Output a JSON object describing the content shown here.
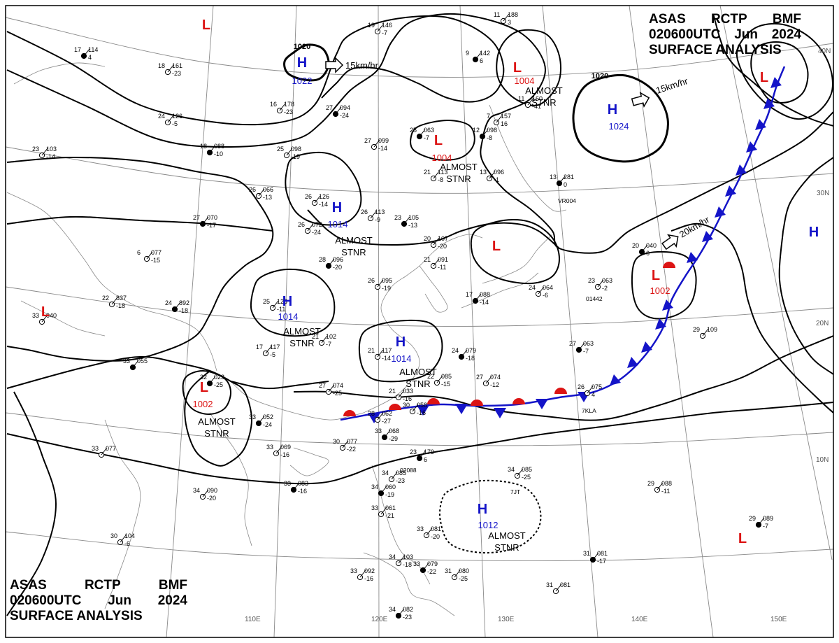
{
  "header": {
    "agency": "ASAS",
    "station": "RCTP",
    "office": "BMF",
    "time": "020600UTC",
    "month": "Jun",
    "year": "2024",
    "title": "SURFACE ANALYSIS"
  },
  "colors": {
    "high": "#1414c8",
    "low": "#dc1414",
    "cold_front": "#1414c8",
    "warm_front": "#dc1414",
    "isobar": "#000000",
    "grid": "#8a8a8a",
    "coast": "#8a8a8a"
  },
  "lon_labels": [
    "110E",
    "120E",
    "130E",
    "140E",
    "150E"
  ],
  "lat_labels": [
    "40N",
    "30N",
    "20N",
    "10N"
  ],
  "isobar_labels": [
    "1020",
    "1020"
  ],
  "pressure_systems": [
    {
      "type": "H",
      "value": "1022"
    },
    {
      "type": "L",
      "value": "1004",
      "note": [
        "ALMOST",
        "STNR"
      ]
    },
    {
      "type": "H",
      "value": "1024"
    },
    {
      "type": "L",
      "value": "1004",
      "note": [
        "ALMOST",
        "STNR"
      ]
    },
    {
      "type": "H",
      "value": "1014",
      "note": [
        "ALMOST",
        "STNR"
      ]
    },
    {
      "type": "H",
      "value": "1014",
      "note": [
        "ALMOST",
        "STNR"
      ]
    },
    {
      "type": "H",
      "value": "1014",
      "note": [
        "ALMOST",
        "STNR"
      ]
    },
    {
      "type": "L",
      "value": "1002",
      "note": [
        "ALMOST",
        "STNR"
      ]
    },
    {
      "type": "L",
      "value": "1002"
    },
    {
      "type": "H",
      "value": "1012",
      "note": [
        "ALMOST",
        "STNR"
      ]
    },
    {
      "type": "L",
      "value": ""
    },
    {
      "type": "L",
      "value": ""
    },
    {
      "type": "L",
      "value": ""
    },
    {
      "type": "L",
      "value": ""
    },
    {
      "type": "L",
      "value": ""
    },
    {
      "type": "H",
      "value": ""
    }
  ],
  "motion_vectors": [
    "15km/hr",
    "15km/hr",
    "20km/hr"
  ],
  "stations": [
    {
      "t": "17",
      "p": "114",
      "d": "4"
    },
    {
      "t": "18",
      "p": "161",
      "d": "-23"
    },
    {
      "t": "16",
      "p": "178",
      "d": "-23"
    },
    {
      "t": "27",
      "p": "094",
      "d": "-24"
    },
    {
      "t": "19",
      "p": "146",
      "d": "-7"
    },
    {
      "t": "11",
      "p": "188",
      "d": "3"
    },
    {
      "t": "9",
      "p": "142",
      "d": "6"
    },
    {
      "t": "24",
      "p": "126",
      "d": "-5"
    },
    {
      "t": "23",
      "p": "103",
      "d": "-14"
    },
    {
      "t": "18",
      "p": "088",
      "d": "-10"
    },
    {
      "t": "25",
      "p": "098",
      "d": "-19"
    },
    {
      "t": "27",
      "p": "099",
      "d": "-14"
    },
    {
      "t": "25",
      "p": "063",
      "d": "-7"
    },
    {
      "t": "7",
      "p": "157",
      "d": "16"
    },
    {
      "t": "11",
      "p": "160",
      "d": "-41"
    },
    {
      "t": "12",
      "p": "098",
      "d": "-8"
    },
    {
      "t": "21",
      "p": "113",
      "d": "-8"
    },
    {
      "t": "13",
      "p": "096",
      "d": "-1"
    },
    {
      "t": "13",
      "p": "281",
      "d": "0"
    },
    {
      "t": "26",
      "p": "066",
      "d": "-13"
    },
    {
      "t": "26",
      "p": "126",
      "d": "-14"
    },
    {
      "t": "27",
      "p": "070",
      "d": "-17"
    },
    {
      "t": "26",
      "p": "072",
      "d": "-24"
    },
    {
      "t": "26",
      "p": "113",
      "d": "-9"
    },
    {
      "t": "23",
      "p": "105",
      "d": "-13"
    },
    {
      "t": "20",
      "p": "107",
      "d": "-20"
    },
    {
      "t": "6",
      "p": "077",
      "d": "-15"
    },
    {
      "t": "28",
      "p": "096",
      "d": "-20"
    },
    {
      "t": "26",
      "p": "095",
      "d": "-19"
    },
    {
      "t": "21",
      "p": "091",
      "d": "-11"
    },
    {
      "t": "17",
      "p": "088",
      "d": "-14"
    },
    {
      "t": "24",
      "p": "064",
      "d": "-6"
    },
    {
      "t": "23",
      "p": "063",
      "d": "-2"
    },
    {
      "t": "20",
      "p": "040",
      "d": "6"
    },
    {
      "t": "33",
      "p": "040",
      "d": ""
    },
    {
      "t": "22",
      "p": "837",
      "d": "-18"
    },
    {
      "t": "24",
      "p": "892",
      "d": "-18"
    },
    {
      "t": "25",
      "p": "128",
      "d": "-11"
    },
    {
      "t": "21",
      "p": "102",
      "d": "-7"
    },
    {
      "t": "33",
      "p": "055",
      "d": ""
    },
    {
      "t": "17",
      "p": "117",
      "d": "-5"
    },
    {
      "t": "21",
      "p": "117",
      "d": "-14"
    },
    {
      "t": "24",
      "p": "079",
      "d": "-18"
    },
    {
      "t": "22",
      "p": "085",
      "d": "-15"
    },
    {
      "t": "27",
      "p": "074",
      "d": "-12"
    },
    {
      "t": "27",
      "p": "063",
      "d": "-7"
    },
    {
      "t": "29",
      "p": "109",
      "d": ""
    },
    {
      "t": "26",
      "p": "075",
      "d": "4"
    },
    {
      "t": "32",
      "p": "023",
      "d": "-25"
    },
    {
      "t": "27",
      "p": "074",
      "d": "-25"
    },
    {
      "t": "21",
      "p": "033",
      "d": "-16"
    },
    {
      "t": "33",
      "p": "052",
      "d": "-24"
    },
    {
      "t": "28",
      "p": "062",
      "d": "-27"
    },
    {
      "t": "30",
      "p": "058",
      "d": "-16"
    },
    {
      "t": "33",
      "p": "068",
      "d": "-29"
    },
    {
      "t": "33",
      "p": "069",
      "d": "-16"
    },
    {
      "t": "30",
      "p": "077",
      "d": "-22"
    },
    {
      "t": "23",
      "p": "179",
      "d": "6"
    },
    {
      "t": "33",
      "p": "077",
      "d": ""
    },
    {
      "t": "34",
      "p": "085",
      "d": "-23"
    },
    {
      "t": "33",
      "p": "083",
      "d": "-16"
    },
    {
      "t": "34",
      "p": "090",
      "d": "-20"
    },
    {
      "t": "34",
      "p": "085",
      "d": "-25"
    },
    {
      "t": "34",
      "p": "060",
      "d": "-19"
    },
    {
      "t": "33",
      "p": "061",
      "d": "-21"
    },
    {
      "t": "29",
      "p": "088",
      "d": "-11"
    },
    {
      "t": "29",
      "p": "089",
      "d": "-7"
    },
    {
      "t": "30",
      "p": "104",
      "d": "-6"
    },
    {
      "t": "33",
      "p": "081",
      "d": "-20"
    },
    {
      "t": "31",
      "p": "081",
      "d": "-17"
    },
    {
      "t": "34",
      "p": "103",
      "d": "-18"
    },
    {
      "t": "33",
      "p": "092",
      "d": "-16"
    },
    {
      "t": "33",
      "p": "079",
      "d": "-22"
    },
    {
      "t": "31",
      "p": "080",
      "d": "-25"
    },
    {
      "t": "31",
      "p": "081",
      "d": ""
    },
    {
      "t": "34",
      "p": "082",
      "d": "-23"
    }
  ],
  "station_ids": [
    "VR004",
    "01442",
    "7KLA",
    "02088",
    "7JT"
  ]
}
